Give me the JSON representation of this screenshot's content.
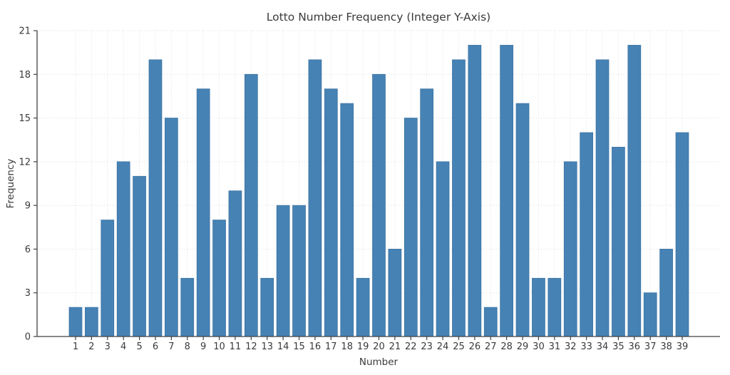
{
  "chart_data": {
    "type": "bar",
    "title": "Lotto Number Frequency (Integer Y-Axis)",
    "xlabel": "Number",
    "ylabel": "Frequency",
    "categories": [
      1,
      2,
      3,
      4,
      5,
      6,
      7,
      8,
      9,
      10,
      11,
      12,
      13,
      14,
      15,
      16,
      17,
      18,
      19,
      20,
      21,
      22,
      23,
      24,
      25,
      26,
      27,
      28,
      29,
      30,
      31,
      32,
      33,
      34,
      35,
      36,
      37,
      38,
      39
    ],
    "values": [
      2,
      2,
      8,
      12,
      11,
      19,
      15,
      4,
      17,
      8,
      10,
      18,
      4,
      9,
      9,
      19,
      17,
      16,
      4,
      18,
      6,
      15,
      17,
      12,
      19,
      20,
      2,
      20,
      16,
      4,
      4,
      12,
      14,
      19,
      13,
      20,
      3,
      6,
      14
    ],
    "yticks": [
      0,
      3,
      6,
      9,
      12,
      15,
      18,
      21
    ],
    "ylim": [
      0,
      21
    ],
    "grid": true,
    "legend": null,
    "colors": {
      "bar_fill": "#4682b4",
      "bar_edge": "#3d74a3",
      "grid_line": "#dcdcdc",
      "axis_spine": "#424242",
      "tick_mark": "#424242",
      "text": "#3a3a3a",
      "background": "#ffffff"
    }
  }
}
